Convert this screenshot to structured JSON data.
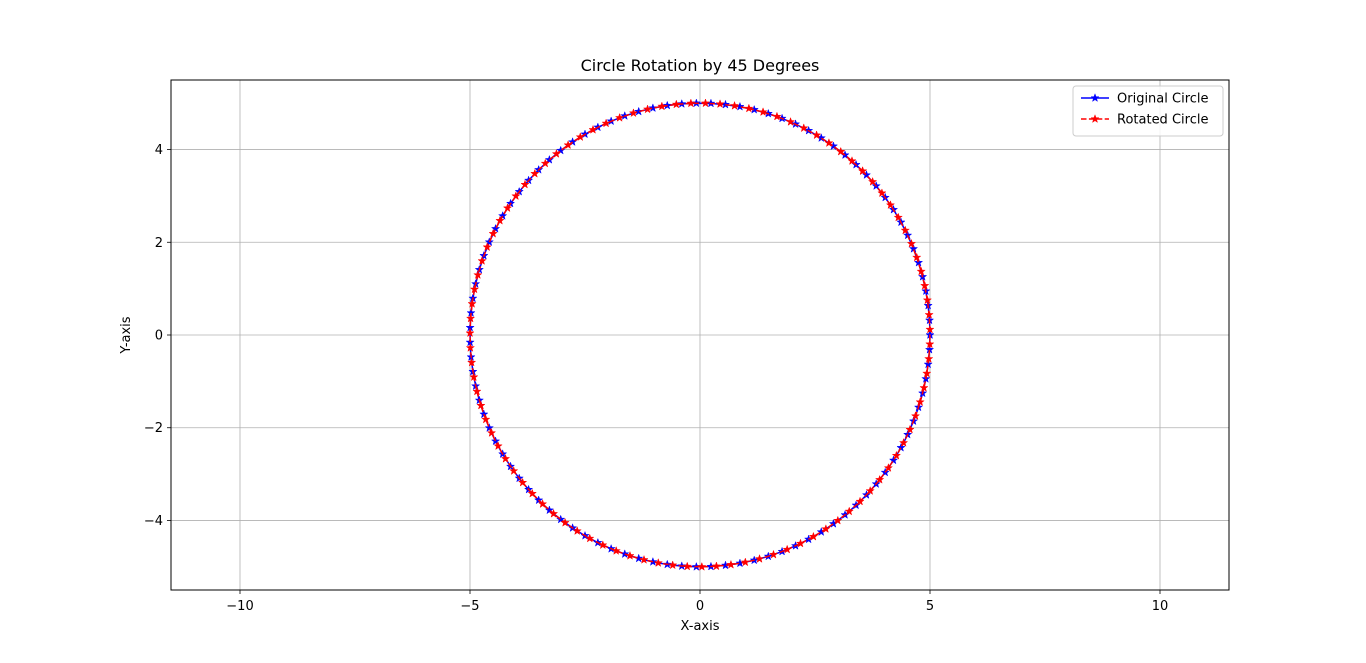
{
  "chart_data": {
    "type": "line",
    "title": "Circle Rotation by 45 Degrees",
    "xlabel": "X-axis",
    "ylabel": "Y-axis",
    "xlim": [
      -11.5,
      11.5
    ],
    "ylim": [
      -5.5,
      5.5
    ],
    "xticks": [
      -10,
      -5,
      0,
      5,
      10
    ],
    "xtick_labels": [
      "−10",
      "−5",
      "0",
      "5",
      "10"
    ],
    "yticks": [
      -4,
      -2,
      0,
      2,
      4
    ],
    "ytick_labels": [
      "−4",
      "−2",
      "0",
      "2",
      "4"
    ],
    "grid": true,
    "legend_position": "top-right",
    "circle": {
      "center": [
        0,
        0
      ],
      "radius": 5,
      "points": 100,
      "rotation_degrees": 45
    },
    "series": [
      {
        "name": "Original Circle",
        "color": "#0000ff",
        "linestyle": "solid",
        "marker": "star",
        "angle_offset_degrees": 0
      },
      {
        "name": "Rotated Circle",
        "color": "#ff0000",
        "linestyle": "dashed",
        "marker": "star",
        "angle_offset_degrees": 45
      }
    ]
  }
}
